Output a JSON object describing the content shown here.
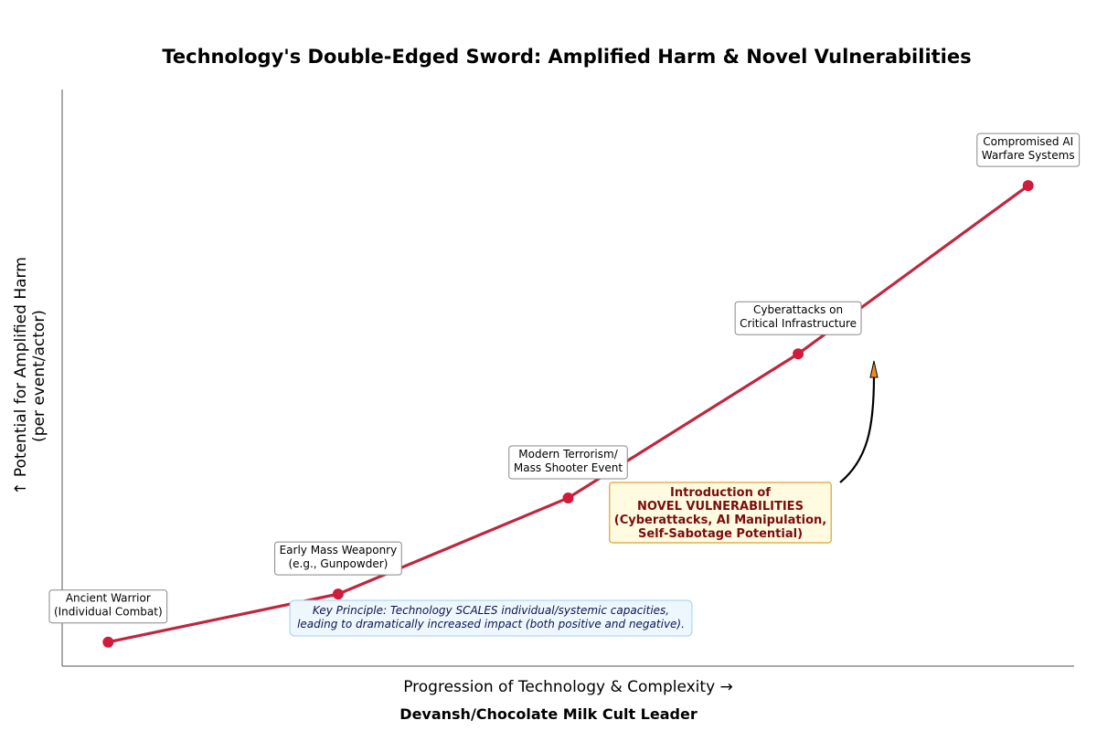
{
  "chart_data": {
    "type": "line",
    "title": "Technology's Double-Edged Sword: Amplified Harm & Novel Vulnerabilities",
    "xlabel": "Progression of Technology & Complexity →",
    "ylabel": [
      "↑ Potential for Amplified Harm",
      "(per event/actor)"
    ],
    "grid": false,
    "xlim": [
      0.8,
      5.2
    ],
    "ylim": [
      0,
      12
    ],
    "series": [
      {
        "color": "#c0263f",
        "marker_color": "#d11a3c",
        "points": [
          {
            "x": 1,
            "y": 0.5,
            "label": [
              "Ancient Warrior",
              "(Individual Combat)"
            ]
          },
          {
            "x": 2,
            "y": 1.5,
            "label": [
              "Early Mass Weaponry",
              "(e.g., Gunpowder)"
            ]
          },
          {
            "x": 3,
            "y": 3.5,
            "label": [
              "Modern Terrorism/",
              "Mass Shooter Event"
            ]
          },
          {
            "x": 4,
            "y": 6.5,
            "label": [
              "Cyberattacks on",
              "Critical Infrastructure"
            ]
          },
          {
            "x": 5,
            "y": 10,
            "label": [
              "Compromised AI",
              "Warfare Systems"
            ]
          }
        ]
      }
    ],
    "annotations": [
      {
        "id": "novel",
        "lines": [
          "Introduction of",
          "NOVEL VULNERABILITIES",
          "(Cyberattacks, AI Manipulation,",
          "Self-Sabotage Potential)"
        ],
        "text_color": "#7a0c0c",
        "bg": "#fffbe0",
        "border": "#e0a030",
        "arrow": "curved arrow from box up to the 4→5 segment"
      },
      {
        "id": "principle",
        "lines": [
          "Key Principle: Technology SCALES individual/systemic capacities,",
          "leading to dramatically increased impact (both positive and negative)."
        ],
        "text_color": "#0a1650",
        "bg": "#eef7fd",
        "border": "#9fd0e8"
      }
    ],
    "arrow_color": "#f08c1e"
  },
  "credit": "Devansh/Chocolate Milk Cult Leader"
}
